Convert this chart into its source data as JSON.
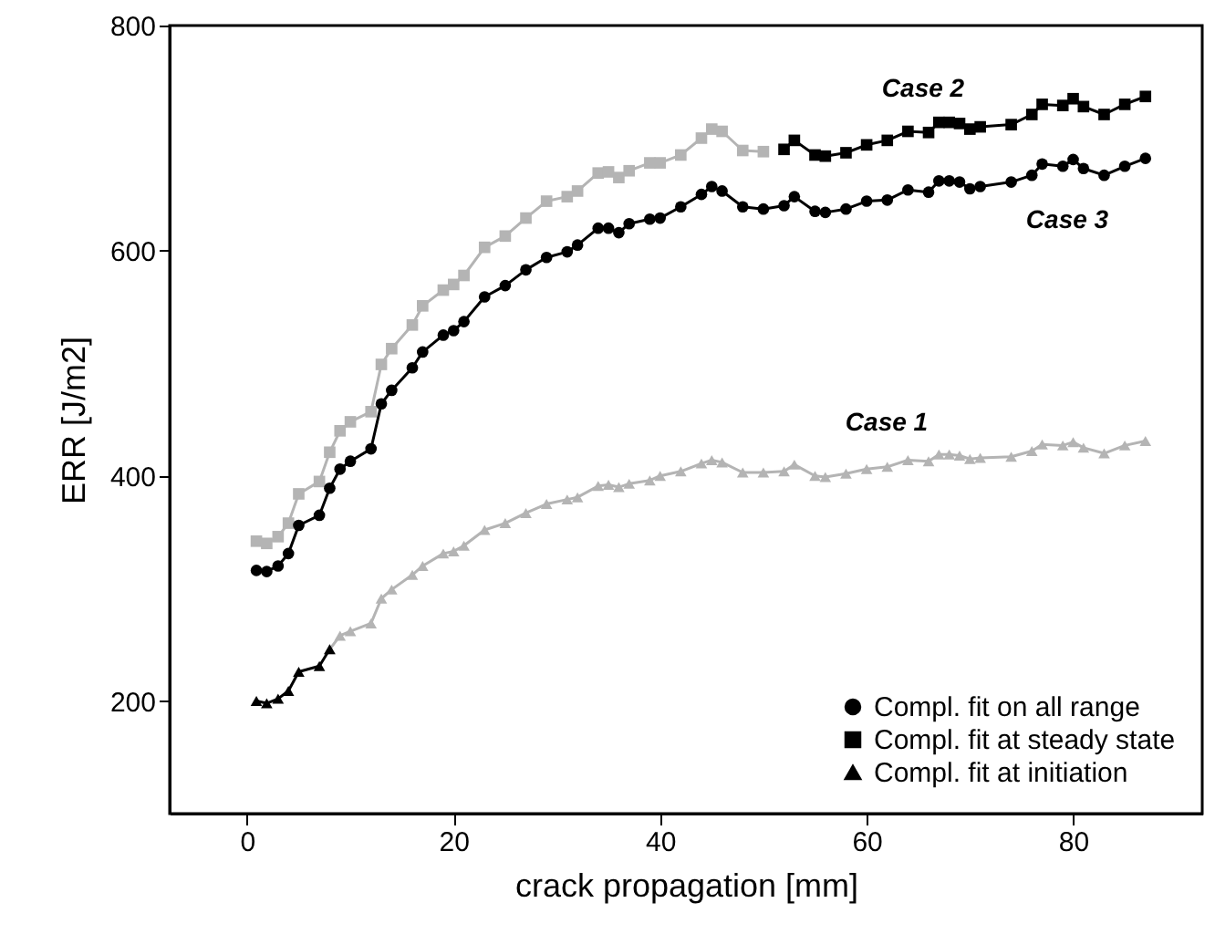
{
  "chart_data": {
    "type": "line",
    "xlabel": "crack propagation [mm]",
    "ylabel": "ERR [J/m2]",
    "xlim": [
      -7.5,
      92.5
    ],
    "ylim": [
      100,
      800
    ],
    "xticks": [
      0,
      20,
      40,
      60,
      80
    ],
    "yticks": [
      200,
      400,
      600,
      800
    ],
    "legend": "bottom right",
    "grid": false,
    "annotations": [
      "Case 2",
      "Case 3",
      "Case 1"
    ],
    "series": [
      {
        "color": "#b4b4b4",
        "marker": "square",
        "x": [
          0.9,
          1.9,
          3,
          4,
          5,
          7,
          8,
          9,
          10,
          12,
          13,
          14,
          16,
          17,
          19,
          20,
          21,
          23,
          25,
          27,
          29,
          31,
          32,
          34,
          35,
          36,
          37,
          39,
          40,
          42,
          44,
          45,
          46,
          48,
          50
        ],
        "values": [
          342,
          340,
          346,
          358,
          384,
          395,
          421,
          440,
          448,
          457,
          499,
          513,
          534,
          551,
          565,
          570,
          578,
          603,
          613,
          629,
          644,
          648,
          653,
          669,
          670,
          665,
          671,
          678,
          678,
          685,
          700,
          708,
          706,
          689,
          688
        ]
      },
      {
        "color": "#b4b4b4",
        "marker": "triangle",
        "x": [
          8,
          9,
          10,
          12,
          13,
          14,
          16,
          17,
          19,
          20,
          21,
          23,
          25,
          27,
          29,
          31,
          32,
          34,
          35,
          36,
          37,
          39,
          40,
          42,
          44,
          45,
          46,
          48,
          50,
          52,
          53,
          55,
          56,
          58,
          60,
          62,
          64,
          66,
          67,
          68,
          69,
          70,
          71,
          74,
          76,
          77,
          79,
          80,
          81,
          83,
          85,
          87
        ],
        "values": [
          246,
          258,
          262,
          269,
          291,
          299,
          312,
          320,
          331,
          333,
          338,
          352,
          358,
          367,
          375,
          379,
          381,
          391,
          392,
          390,
          393,
          396,
          400,
          404,
          411,
          414,
          412,
          403,
          403,
          404,
          410,
          400,
          399,
          402,
          406,
          408,
          414,
          413,
          419,
          419,
          418,
          415,
          416,
          417,
          422,
          428,
          427,
          430,
          425,
          420,
          427,
          431
        ]
      },
      {
        "name": "Compl. fit on all range",
        "color": "#000000",
        "marker": "circle",
        "x": [
          0.9,
          1.9,
          3,
          4,
          5,
          7,
          8,
          9,
          10,
          12,
          13,
          14,
          16,
          17,
          19,
          20,
          21,
          23,
          25,
          27,
          29,
          31,
          32,
          34,
          35,
          36,
          37,
          39,
          40,
          42,
          44,
          45,
          46,
          48,
          50,
          52,
          53,
          55,
          56,
          58,
          60,
          62,
          64,
          66,
          67,
          68,
          69,
          70,
          71,
          74,
          76,
          77,
          79,
          80,
          81,
          83,
          85,
          87
        ],
        "values": [
          316,
          315,
          320,
          331,
          356,
          365,
          389,
          406,
          413,
          424,
          464,
          476,
          496,
          510,
          525,
          529,
          537,
          559,
          569,
          583,
          594,
          599,
          605,
          620,
          620,
          616,
          624,
          628,
          629,
          639,
          650,
          657,
          653,
          639,
          637,
          640,
          648,
          635,
          634,
          637,
          644,
          645,
          654,
          652,
          662,
          662,
          661,
          655,
          657,
          661,
          667,
          677,
          675,
          681,
          673,
          667,
          675,
          682
        ]
      },
      {
        "name": "Compl. fit at steady state",
        "color": "#000000",
        "marker": "square",
        "x": [
          52,
          53,
          55,
          56,
          58,
          60,
          62,
          64,
          66,
          67,
          68,
          69,
          70,
          71,
          74,
          76,
          77,
          79,
          80,
          81,
          83,
          85,
          87
        ],
        "values": [
          690,
          698,
          685,
          684,
          687,
          694,
          698,
          706,
          705,
          714,
          714,
          713,
          708,
          710,
          712,
          721,
          730,
          729,
          735,
          728,
          721,
          730,
          737
        ]
      },
      {
        "name": "Compl. fit at initiation",
        "color": "#000000",
        "marker": "triangle",
        "x": [
          0.9,
          1.9,
          3,
          4,
          5,
          7,
          8
        ],
        "values": [
          200,
          198,
          202,
          209,
          226,
          231,
          246
        ]
      }
    ]
  }
}
